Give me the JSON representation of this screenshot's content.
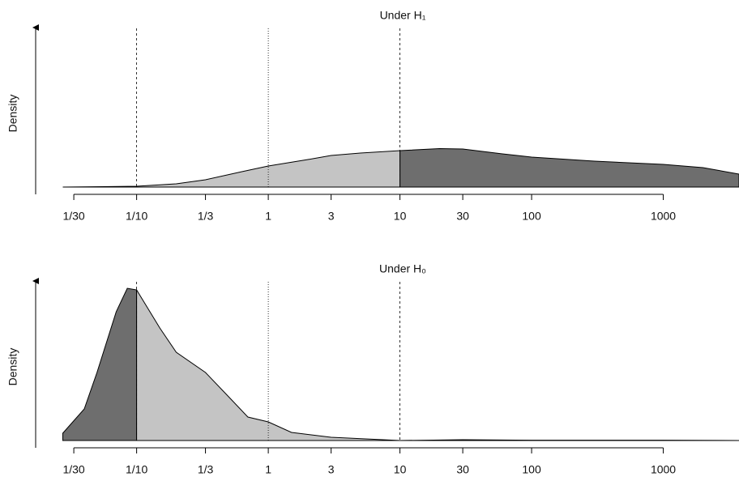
{
  "chart_data": [
    {
      "type": "area",
      "title": "Under H₁",
      "ylabel": "Density",
      "xscale": "log",
      "xlim": [
        0.0273,
        3760
      ],
      "ylim": [
        0,
        1
      ],
      "xticks": [
        {
          "value": 0.03333,
          "label": "1/30"
        },
        {
          "value": 0.1,
          "label": "1/10"
        },
        {
          "value": 0.3333,
          "label": "1/3"
        },
        1,
        3,
        10,
        30,
        100,
        1000
      ],
      "vlines": [
        {
          "x": 0.1,
          "style": "dashed"
        },
        {
          "x": 1,
          "style": "dotted"
        },
        {
          "x": 10,
          "style": "dashed"
        }
      ],
      "series": [
        {
          "color": "#c4c4c4",
          "x": [
            0.0275,
            0.1,
            0.2,
            0.3333,
            0.63,
            1,
            2,
            3,
            5,
            10
          ],
          "values": [
            0,
            0.005,
            0.02,
            0.045,
            0.095,
            0.13,
            0.17,
            0.195,
            0.21,
            0.225
          ]
        },
        {
          "color": "#6e6e6e",
          "x": [
            10,
            20,
            30,
            60,
            100,
            300,
            1000,
            2000,
            3760
          ],
          "values": [
            0.225,
            0.2375,
            0.235,
            0.205,
            0.185,
            0.16,
            0.14,
            0.12,
            0.08
          ]
        }
      ]
    },
    {
      "type": "area",
      "title": "Under H₀",
      "ylabel": "Density",
      "xscale": "log",
      "xlim": [
        0.0273,
        3760
      ],
      "ylim": [
        0,
        1
      ],
      "xticks": [
        {
          "value": 0.03333,
          "label": "1/30"
        },
        {
          "value": 0.1,
          "label": "1/10"
        },
        {
          "value": 0.3333,
          "label": "1/3"
        },
        1,
        3,
        10,
        30,
        100,
        1000
      ],
      "vlines": [
        {
          "x": 0.1,
          "style": "dashed"
        },
        {
          "x": 1,
          "style": "dotted"
        },
        {
          "x": 10,
          "style": "dashed"
        }
      ],
      "series": [
        {
          "color": "#6e6e6e",
          "x": [
            0.0275,
            0.04,
            0.05,
            0.07,
            0.085,
            0.1
          ],
          "values": [
            0.045,
            0.195,
            0.42,
            0.795,
            0.94,
            0.93
          ]
        },
        {
          "color": "#c4c4c4",
          "x": [
            0.1,
            0.15,
            0.2,
            0.3333,
            0.5,
            0.7,
            1,
            1.5,
            3,
            10,
            30,
            100,
            1000,
            3760
          ],
          "values": [
            0.93,
            0.695,
            0.545,
            0.42,
            0.27,
            0.145,
            0.115,
            0.05,
            0.02,
            0,
            0.005,
            0.002,
            0.002,
            0
          ]
        }
      ]
    }
  ]
}
